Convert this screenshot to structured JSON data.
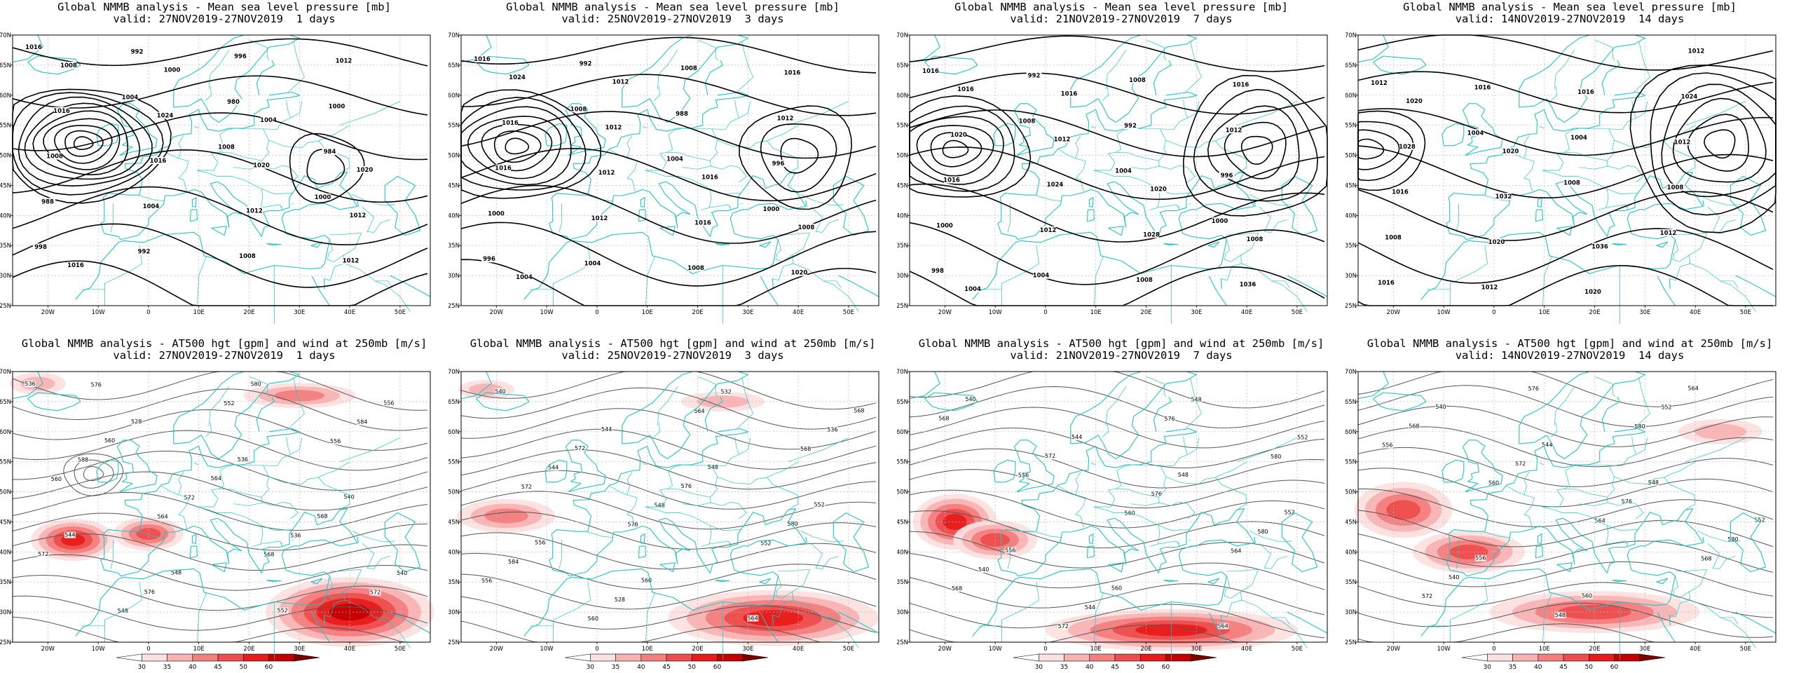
{
  "panels": [
    {
      "row": "top",
      "title": "Global NMMB analysis - Mean sea level pressure [mb]",
      "valid": "valid: 27NOV2019-27NOV2019  1 days"
    },
    {
      "row": "top",
      "title": "Global NMMB analysis - Mean sea level pressure [mb]",
      "valid": "valid: 25NOV2019-27NOV2019  3 days"
    },
    {
      "row": "top",
      "title": "Global NMMB analysis - Mean sea level pressure [mb]",
      "valid": "valid: 21NOV2019-27NOV2019  7 days"
    },
    {
      "row": "top",
      "title": "Global NMMB analysis - Mean sea level pressure [mb]",
      "valid": "valid: 14NOV2019-27NOV2019  14 days"
    },
    {
      "row": "bottom",
      "title": "Global NMMB analysis - AT500 hgt [gpm] and wind at 250mb [m/s]",
      "valid": "valid: 27NOV2019-27NOV2019  1 days"
    },
    {
      "row": "bottom",
      "title": "Global NMMB analysis - AT500 hgt [gpm] and wind at 250mb [m/s]",
      "valid": "valid: 25NOV2019-27NOV2019  3 days"
    },
    {
      "row": "bottom",
      "title": "Global NMMB analysis - AT500 hgt [gpm] and wind at 250mb [m/s]",
      "valid": "valid: 21NOV2019-27NOV2019  7 days"
    },
    {
      "row": "bottom",
      "title": "Global NMMB analysis - AT500 hgt [gpm] and wind at 250mb [m/s]",
      "valid": "valid: 14NOV2019-27NOV2019  14 days"
    }
  ],
  "axes": {
    "lat_labels": [
      "70N",
      "65N",
      "60N",
      "55N",
      "50N",
      "45N",
      "40N",
      "35N",
      "30N",
      "25N"
    ],
    "lon_labels": [
      "20W",
      "10W",
      "0",
      "10E",
      "20E",
      "30E",
      "40E",
      "50E"
    ]
  },
  "colorbar": {
    "ticks": [
      "30",
      "35",
      "40",
      "45",
      "50",
      "60"
    ],
    "colors": [
      "#ffffff",
      "#fde0e0",
      "#f9b3b3",
      "#f47f7f",
      "#ee4d4d",
      "#e81c1c",
      "#c40000",
      "#7a0000"
    ]
  },
  "colors": {
    "coast": "#22c4c4",
    "contour": "#000000",
    "hgt_contour": "#555555",
    "grid": "#b8b8b8"
  },
  "mslp_labels": [
    [
      "1016",
      "1004",
      "1008",
      "1000",
      "998",
      "992",
      "980",
      "984",
      "988",
      "992",
      "996",
      "1000",
      "1008",
      "1004",
      "1008",
      "1012",
      "1016",
      "1016",
      "1012",
      "1012",
      "1008",
      "1024",
      "1020",
      "1012",
      "1016",
      "1000",
      "1004",
      "1020"
    ],
    [
      "1016",
      "1008",
      "1004",
      "1000",
      "996",
      "992",
      "988",
      "996",
      "1000",
      "1004",
      "1008",
      "1012",
      "1016",
      "1012",
      "1008",
      "1016",
      "1016",
      "1012",
      "1016",
      "1020",
      "1024",
      "1012",
      "1016",
      "1008",
      "1004",
      "1012"
    ],
    [
      "1016",
      "1008",
      "1004",
      "1000",
      "998",
      "992",
      "992",
      "996",
      "1000",
      "1004",
      "1008",
      "1012",
      "1016",
      "1012",
      "1008",
      "1016",
      "1020",
      "1024",
      "1028",
      "1036",
      "1016",
      "1012",
      "1020",
      "1008",
      "1004",
      "1016"
    ],
    [
      "1012",
      "1004",
      "1008",
      "1012",
      "1016",
      "1016",
      "1004",
      "1008",
      "1008",
      "1012",
      "1016",
      "1012",
      "1016",
      "1020",
      "1020",
      "1024",
      "1028",
      "1032",
      "1036",
      "1012",
      "1020",
      "1020"
    ]
  ],
  "hgt_labels": [
    [
      "536",
      "528",
      "536",
      "540",
      "544",
      "548",
      "552",
      "556",
      "560",
      "564",
      "568",
      "572",
      "576",
      "580",
      "584",
      "588",
      "572",
      "536",
      "540",
      "548",
      "552",
      "556",
      "560",
      "564",
      "568",
      "572",
      "576"
    ],
    [
      "540",
      "544",
      "548",
      "552",
      "556",
      "560",
      "564",
      "568",
      "572",
      "576",
      "580",
      "584",
      "528",
      "532",
      "536",
      "544",
      "548",
      "552",
      "556",
      "560",
      "564",
      "568",
      "572",
      "576"
    ],
    [
      "540",
      "544",
      "548",
      "552",
      "556",
      "560",
      "564",
      "568",
      "572",
      "576",
      "580",
      "540",
      "544",
      "548",
      "552",
      "556",
      "560",
      "564",
      "568",
      "572",
      "576",
      "580"
    ],
    [
      "540",
      "544",
      "548",
      "552",
      "556",
      "560",
      "564",
      "568",
      "572",
      "576",
      "580",
      "540",
      "548",
      "552",
      "556",
      "560",
      "564",
      "568",
      "572",
      "576",
      "580"
    ]
  ]
}
